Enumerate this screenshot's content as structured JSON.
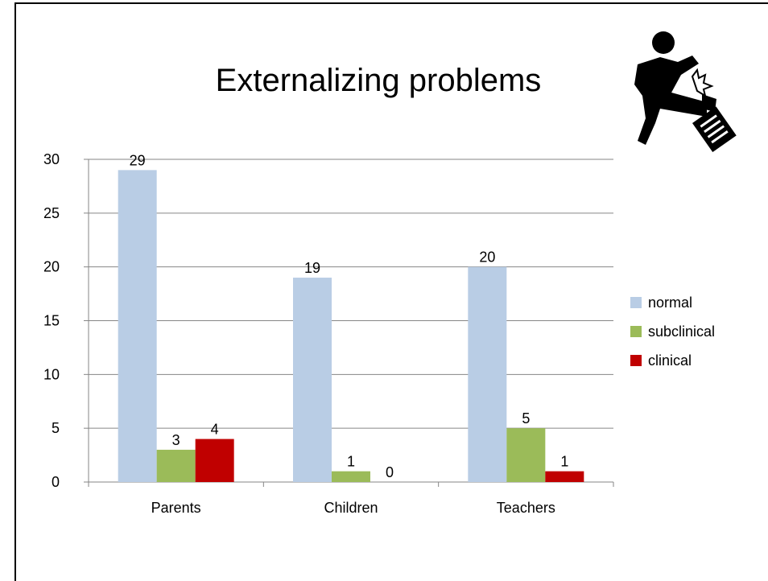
{
  "chart_data": {
    "type": "bar",
    "title": "Externalizing problems",
    "categories": [
      "Parents",
      "Children",
      "Teachers"
    ],
    "series": [
      {
        "name": "normal",
        "color": "#b9cde5",
        "values": [
          29,
          19,
          20
        ]
      },
      {
        "name": "subclinical",
        "color": "#9bbb59",
        "values": [
          3,
          1,
          5
        ]
      },
      {
        "name": "clinical",
        "color": "#c00000",
        "values": [
          4,
          0,
          1
        ]
      }
    ],
    "ylim": [
      0,
      30
    ],
    "yticks": [
      0,
      5,
      10,
      15,
      20,
      25,
      30
    ],
    "xlabel": "",
    "ylabel": "",
    "grid": true,
    "legend_position": "right"
  },
  "icon": {
    "name": "kicking-person-icon"
  }
}
